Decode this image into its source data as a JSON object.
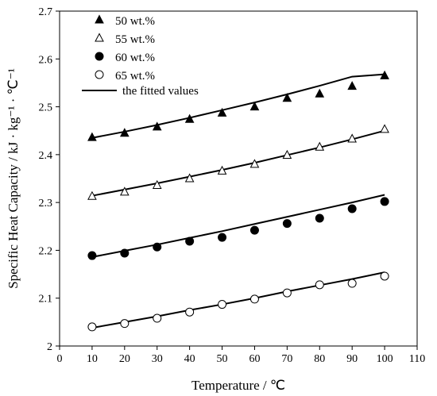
{
  "chart_data": {
    "type": "scatter",
    "title": "",
    "xlabel": "Temperature / ℃",
    "ylabel": "Specific Heat Capacity / kJ · kg⁻¹ · ℃⁻¹",
    "xlim": [
      0,
      110
    ],
    "ylim": [
      2.0,
      2.7
    ],
    "x_ticks": [
      "0",
      "10",
      "20",
      "30",
      "40",
      "50",
      "60",
      "70",
      "80",
      "90",
      "100",
      "110"
    ],
    "y_ticks": [
      "2",
      "2.1",
      "2.2",
      "2.3",
      "2.4",
      "2.5",
      "2.6",
      "2.7"
    ],
    "grid": false,
    "legend_position": "top-left",
    "x": [
      10,
      20,
      30,
      40,
      50,
      60,
      70,
      80,
      90,
      100
    ],
    "series": [
      {
        "name": "50 wt.%",
        "marker": "triangle-filled",
        "values": [
          2.436,
          2.445,
          2.458,
          2.474,
          2.487,
          2.5,
          2.518,
          2.527,
          2.543,
          2.565
        ],
        "fitted": [
          2.435,
          2.448,
          2.462,
          2.477,
          2.493,
          2.509,
          2.526,
          2.544,
          2.563,
          2.568
        ]
      },
      {
        "name": "55 wt.%",
        "marker": "triangle-open",
        "values": [
          2.313,
          2.322,
          2.336,
          2.35,
          2.366,
          2.38,
          2.399,
          2.416,
          2.433,
          2.453
        ],
        "fitted": [
          2.314,
          2.327,
          2.34,
          2.354,
          2.368,
          2.383,
          2.399,
          2.415,
          2.432,
          2.45
        ]
      },
      {
        "name": "60 wt.%",
        "marker": "circle-filled",
        "values": [
          2.189,
          2.194,
          2.207,
          2.219,
          2.227,
          2.242,
          2.256,
          2.267,
          2.287,
          2.302
        ],
        "fitted": [
          2.186,
          2.199,
          2.212,
          2.226,
          2.24,
          2.255,
          2.27,
          2.285,
          2.3,
          2.316
        ]
      },
      {
        "name": "65 wt.%",
        "marker": "circle-open",
        "values": [
          2.04,
          2.047,
          2.058,
          2.071,
          2.087,
          2.098,
          2.111,
          2.128,
          2.131,
          2.146
        ],
        "fitted": [
          2.038,
          2.05,
          2.062,
          2.075,
          2.087,
          2.1,
          2.114,
          2.127,
          2.14,
          2.154
        ]
      }
    ],
    "fitted_label": "the fitted values"
  }
}
